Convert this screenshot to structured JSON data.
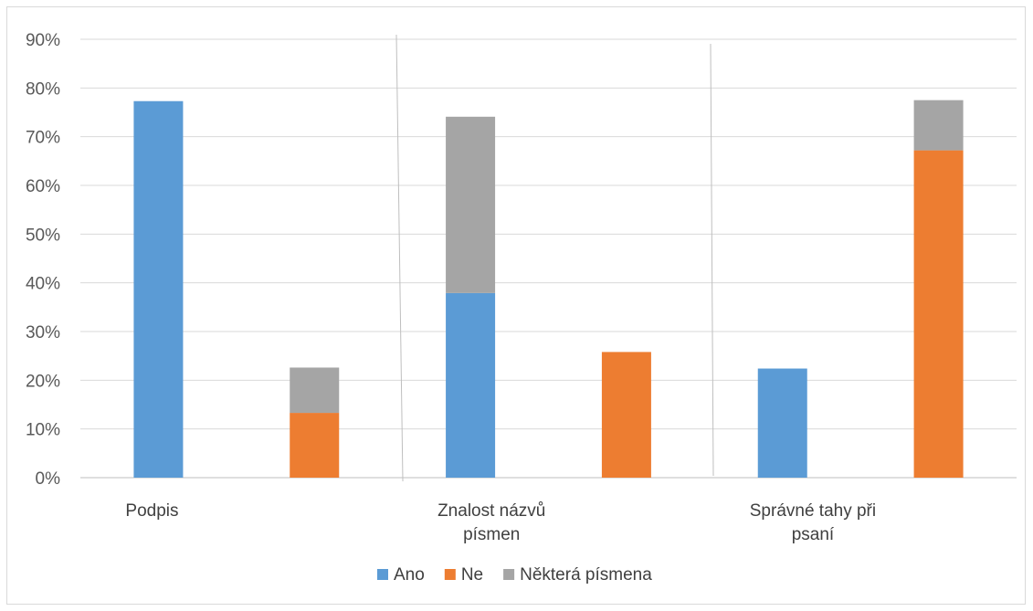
{
  "chart_data": {
    "type": "bar",
    "stacked": true,
    "ylim": [
      0,
      90
    ],
    "y_ticks": [
      "0%",
      "10%",
      "20%",
      "30%",
      "40%",
      "50%",
      "60%",
      "70%",
      "80%",
      "90%"
    ],
    "grid": true,
    "legend_position": "bottom",
    "groups": [
      {
        "label": [
          "Podpis"
        ]
      },
      {
        "label": [
          "Znalost názvů",
          "písmen"
        ]
      },
      {
        "label": [
          "Správné tahy při",
          "psaní"
        ]
      }
    ],
    "bars": [
      {
        "group": 0,
        "segments": [
          {
            "series": "Ano",
            "value": 77.3
          }
        ]
      },
      {
        "group": 0,
        "segments": [
          {
            "series": "Ne",
            "value": 13.3
          },
          {
            "series": "Některá písmena",
            "value": 9.3
          }
        ]
      },
      {
        "group": 1,
        "segments": [
          {
            "series": "Ano",
            "value": 37.9
          },
          {
            "series": "Některá písmena",
            "value": 36.2
          }
        ]
      },
      {
        "group": 1,
        "segments": [
          {
            "series": "Ne",
            "value": 25.8
          }
        ]
      },
      {
        "group": 2,
        "segments": [
          {
            "series": "Ano",
            "value": 22.4
          }
        ]
      },
      {
        "group": 2,
        "segments": [
          {
            "series": "Ne",
            "value": 67.2
          },
          {
            "series": "Některá písmena",
            "value": 10.3
          }
        ]
      }
    ],
    "series": [
      {
        "name": "Ano",
        "color": "#5b9bd5"
      },
      {
        "name": "Ne",
        "color": "#ed7d31"
      },
      {
        "name": "Některá písmena",
        "color": "#a5a5a5"
      }
    ]
  }
}
